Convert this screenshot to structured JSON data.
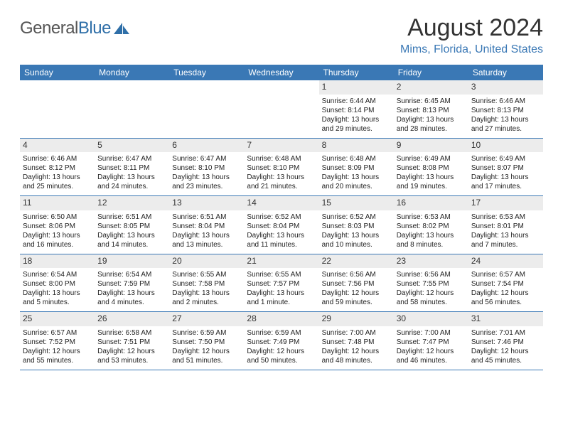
{
  "logo": {
    "text1": "General",
    "text2": "Blue",
    "color_gray": "#555555",
    "color_blue": "#2f6fa8"
  },
  "title": "August 2024",
  "location": "Mims, Florida, United States",
  "header_bg": "#3a78b5",
  "header_fg": "#ffffff",
  "daynum_bg": "#ececec",
  "divider_color": "#3a78b5",
  "weekdays": [
    "Sunday",
    "Monday",
    "Tuesday",
    "Wednesday",
    "Thursday",
    "Friday",
    "Saturday"
  ],
  "weeks": [
    [
      {
        "n": "",
        "sr": "",
        "ss": "",
        "d1": "",
        "d2": ""
      },
      {
        "n": "",
        "sr": "",
        "ss": "",
        "d1": "",
        "d2": ""
      },
      {
        "n": "",
        "sr": "",
        "ss": "",
        "d1": "",
        "d2": ""
      },
      {
        "n": "",
        "sr": "",
        "ss": "",
        "d1": "",
        "d2": ""
      },
      {
        "n": "1",
        "sr": "Sunrise: 6:44 AM",
        "ss": "Sunset: 8:14 PM",
        "d1": "Daylight: 13 hours",
        "d2": "and 29 minutes."
      },
      {
        "n": "2",
        "sr": "Sunrise: 6:45 AM",
        "ss": "Sunset: 8:13 PM",
        "d1": "Daylight: 13 hours",
        "d2": "and 28 minutes."
      },
      {
        "n": "3",
        "sr": "Sunrise: 6:46 AM",
        "ss": "Sunset: 8:13 PM",
        "d1": "Daylight: 13 hours",
        "d2": "and 27 minutes."
      }
    ],
    [
      {
        "n": "4",
        "sr": "Sunrise: 6:46 AM",
        "ss": "Sunset: 8:12 PM",
        "d1": "Daylight: 13 hours",
        "d2": "and 25 minutes."
      },
      {
        "n": "5",
        "sr": "Sunrise: 6:47 AM",
        "ss": "Sunset: 8:11 PM",
        "d1": "Daylight: 13 hours",
        "d2": "and 24 minutes."
      },
      {
        "n": "6",
        "sr": "Sunrise: 6:47 AM",
        "ss": "Sunset: 8:10 PM",
        "d1": "Daylight: 13 hours",
        "d2": "and 23 minutes."
      },
      {
        "n": "7",
        "sr": "Sunrise: 6:48 AM",
        "ss": "Sunset: 8:10 PM",
        "d1": "Daylight: 13 hours",
        "d2": "and 21 minutes."
      },
      {
        "n": "8",
        "sr": "Sunrise: 6:48 AM",
        "ss": "Sunset: 8:09 PM",
        "d1": "Daylight: 13 hours",
        "d2": "and 20 minutes."
      },
      {
        "n": "9",
        "sr": "Sunrise: 6:49 AM",
        "ss": "Sunset: 8:08 PM",
        "d1": "Daylight: 13 hours",
        "d2": "and 19 minutes."
      },
      {
        "n": "10",
        "sr": "Sunrise: 6:49 AM",
        "ss": "Sunset: 8:07 PM",
        "d1": "Daylight: 13 hours",
        "d2": "and 17 minutes."
      }
    ],
    [
      {
        "n": "11",
        "sr": "Sunrise: 6:50 AM",
        "ss": "Sunset: 8:06 PM",
        "d1": "Daylight: 13 hours",
        "d2": "and 16 minutes."
      },
      {
        "n": "12",
        "sr": "Sunrise: 6:51 AM",
        "ss": "Sunset: 8:05 PM",
        "d1": "Daylight: 13 hours",
        "d2": "and 14 minutes."
      },
      {
        "n": "13",
        "sr": "Sunrise: 6:51 AM",
        "ss": "Sunset: 8:04 PM",
        "d1": "Daylight: 13 hours",
        "d2": "and 13 minutes."
      },
      {
        "n": "14",
        "sr": "Sunrise: 6:52 AM",
        "ss": "Sunset: 8:04 PM",
        "d1": "Daylight: 13 hours",
        "d2": "and 11 minutes."
      },
      {
        "n": "15",
        "sr": "Sunrise: 6:52 AM",
        "ss": "Sunset: 8:03 PM",
        "d1": "Daylight: 13 hours",
        "d2": "and 10 minutes."
      },
      {
        "n": "16",
        "sr": "Sunrise: 6:53 AM",
        "ss": "Sunset: 8:02 PM",
        "d1": "Daylight: 13 hours",
        "d2": "and 8 minutes."
      },
      {
        "n": "17",
        "sr": "Sunrise: 6:53 AM",
        "ss": "Sunset: 8:01 PM",
        "d1": "Daylight: 13 hours",
        "d2": "and 7 minutes."
      }
    ],
    [
      {
        "n": "18",
        "sr": "Sunrise: 6:54 AM",
        "ss": "Sunset: 8:00 PM",
        "d1": "Daylight: 13 hours",
        "d2": "and 5 minutes."
      },
      {
        "n": "19",
        "sr": "Sunrise: 6:54 AM",
        "ss": "Sunset: 7:59 PM",
        "d1": "Daylight: 13 hours",
        "d2": "and 4 minutes."
      },
      {
        "n": "20",
        "sr": "Sunrise: 6:55 AM",
        "ss": "Sunset: 7:58 PM",
        "d1": "Daylight: 13 hours",
        "d2": "and 2 minutes."
      },
      {
        "n": "21",
        "sr": "Sunrise: 6:55 AM",
        "ss": "Sunset: 7:57 PM",
        "d1": "Daylight: 13 hours",
        "d2": "and 1 minute."
      },
      {
        "n": "22",
        "sr": "Sunrise: 6:56 AM",
        "ss": "Sunset: 7:56 PM",
        "d1": "Daylight: 12 hours",
        "d2": "and 59 minutes."
      },
      {
        "n": "23",
        "sr": "Sunrise: 6:56 AM",
        "ss": "Sunset: 7:55 PM",
        "d1": "Daylight: 12 hours",
        "d2": "and 58 minutes."
      },
      {
        "n": "24",
        "sr": "Sunrise: 6:57 AM",
        "ss": "Sunset: 7:54 PM",
        "d1": "Daylight: 12 hours",
        "d2": "and 56 minutes."
      }
    ],
    [
      {
        "n": "25",
        "sr": "Sunrise: 6:57 AM",
        "ss": "Sunset: 7:52 PM",
        "d1": "Daylight: 12 hours",
        "d2": "and 55 minutes."
      },
      {
        "n": "26",
        "sr": "Sunrise: 6:58 AM",
        "ss": "Sunset: 7:51 PM",
        "d1": "Daylight: 12 hours",
        "d2": "and 53 minutes."
      },
      {
        "n": "27",
        "sr": "Sunrise: 6:59 AM",
        "ss": "Sunset: 7:50 PM",
        "d1": "Daylight: 12 hours",
        "d2": "and 51 minutes."
      },
      {
        "n": "28",
        "sr": "Sunrise: 6:59 AM",
        "ss": "Sunset: 7:49 PM",
        "d1": "Daylight: 12 hours",
        "d2": "and 50 minutes."
      },
      {
        "n": "29",
        "sr": "Sunrise: 7:00 AM",
        "ss": "Sunset: 7:48 PM",
        "d1": "Daylight: 12 hours",
        "d2": "and 48 minutes."
      },
      {
        "n": "30",
        "sr": "Sunrise: 7:00 AM",
        "ss": "Sunset: 7:47 PM",
        "d1": "Daylight: 12 hours",
        "d2": "and 46 minutes."
      },
      {
        "n": "31",
        "sr": "Sunrise: 7:01 AM",
        "ss": "Sunset: 7:46 PM",
        "d1": "Daylight: 12 hours",
        "d2": "and 45 minutes."
      }
    ]
  ]
}
